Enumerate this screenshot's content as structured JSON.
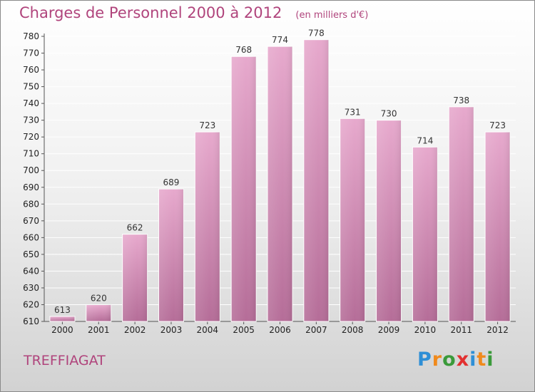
{
  "title": "Charges de Personnel 2000 à 2012",
  "subtitle": "(en milliers d'€)",
  "commune": "TREFFIAGAT",
  "logo": {
    "letters": [
      "P",
      "r",
      "o",
      "x",
      "i",
      "t",
      "i"
    ],
    "colors": [
      "#2e8fd6",
      "#f08a1c",
      "#3a9a3a",
      "#e23030",
      "#2e8fd6",
      "#f08a1c",
      "#3a9a3a"
    ]
  },
  "colors": {
    "accent": "#b0447c",
    "bar_top": "#e7a9cd",
    "bar_bottom": "#b56d98"
  },
  "chart_data": {
    "type": "bar",
    "categories": [
      "2000",
      "2001",
      "2002",
      "2003",
      "2004",
      "2005",
      "2006",
      "2007",
      "2008",
      "2009",
      "2010",
      "2011",
      "2012"
    ],
    "values": [
      613,
      620,
      662,
      689,
      723,
      768,
      774,
      778,
      731,
      730,
      714,
      738,
      723
    ],
    "ylim": [
      610,
      780
    ],
    "yticks": [
      610,
      620,
      630,
      640,
      650,
      660,
      670,
      680,
      690,
      700,
      710,
      720,
      730,
      740,
      750,
      760,
      770,
      780
    ],
    "grid": true
  }
}
